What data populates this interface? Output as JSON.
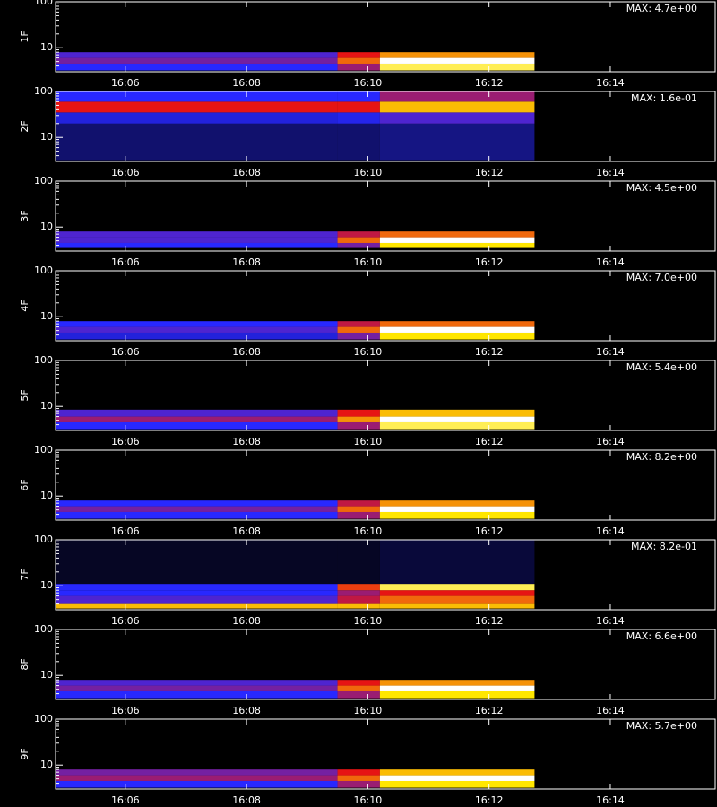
{
  "chart_data": [
    {
      "type": "heatmap",
      "ylabel": "1F",
      "annotation": "MAX: 4.7e+00",
      "log_y": true,
      "xlim": [
        964.85,
        975.73
      ],
      "ylim": [
        3,
        100
      ],
      "xticks": [
        {
          "value": 966,
          "label": "16:06"
        },
        {
          "value": 968,
          "label": "16:08"
        },
        {
          "value": 970,
          "label": "16:10"
        },
        {
          "value": 972,
          "label": "16:12"
        },
        {
          "value": 974,
          "label": "16:14"
        }
      ],
      "yticks": [
        10,
        100
      ],
      "xbins": [
        964.85,
        969.5,
        970.2,
        972.75
      ],
      "ybins": [
        3.2,
        4.5,
        6,
        8
      ],
      "values": [
        [
          0.35,
          0.5,
          0.9
        ],
        [
          0.45,
          0.7,
          1.0
        ],
        [
          0.4,
          0.6,
          0.75
        ]
      ]
    },
    {
      "type": "heatmap",
      "ylabel": "2F",
      "annotation": "MAX: 1.6e-01",
      "log_y": true,
      "xlim": [
        964.85,
        975.73
      ],
      "ylim": [
        3,
        100
      ],
      "xticks": [
        {
          "value": 966,
          "label": "16:06"
        },
        {
          "value": 968,
          "label": "16:08"
        },
        {
          "value": 970,
          "label": "16:10"
        },
        {
          "value": 972,
          "label": "16:12"
        },
        {
          "value": 974,
          "label": "16:14"
        }
      ],
      "yticks": [
        10,
        100
      ],
      "xbins": [
        964.85,
        969.5,
        970.2,
        972.75
      ],
      "ybins": [
        3.2,
        20,
        35,
        60,
        100
      ],
      "values": [
        [
          0.15,
          0.15,
          0.18
        ],
        [
          0.3,
          0.32,
          0.4
        ],
        [
          0.6,
          0.6,
          0.8
        ],
        [
          0.35,
          0.35,
          0.5
        ]
      ]
    },
    {
      "type": "heatmap",
      "ylabel": "3F",
      "annotation": "MAX: 4.5e+00",
      "log_y": true,
      "xlim": [
        964.85,
        975.73
      ],
      "ylim": [
        3,
        100
      ],
      "xticks": [
        {
          "value": 966,
          "label": "16:06"
        },
        {
          "value": 968,
          "label": "16:08"
        },
        {
          "value": 970,
          "label": "16:10"
        },
        {
          "value": 972,
          "label": "16:12"
        },
        {
          "value": 974,
          "label": "16:14"
        }
      ],
      "yticks": [
        10,
        100
      ],
      "xbins": [
        964.85,
        969.5,
        970.2,
        972.75
      ],
      "ybins": [
        3.5,
        4.5,
        6,
        8
      ],
      "values": [
        [
          0.35,
          0.45,
          0.85
        ],
        [
          0.4,
          0.7,
          1.0
        ],
        [
          0.4,
          0.55,
          0.7
        ]
      ]
    },
    {
      "type": "heatmap",
      "ylabel": "4F",
      "annotation": "MAX: 7.0e+00",
      "log_y": true,
      "xlim": [
        964.85,
        975.73
      ],
      "ylim": [
        3,
        100
      ],
      "xticks": [
        {
          "value": 966,
          "label": "16:06"
        },
        {
          "value": 968,
          "label": "16:08"
        },
        {
          "value": 970,
          "label": "16:10"
        },
        {
          "value": 972,
          "label": "16:12"
        },
        {
          "value": 974,
          "label": "16:14"
        }
      ],
      "yticks": [
        10,
        100
      ],
      "xbins": [
        964.85,
        969.5,
        970.2,
        972.75
      ],
      "ybins": [
        3.2,
        4.5,
        6,
        8
      ],
      "values": [
        [
          0.3,
          0.45,
          0.85
        ],
        [
          0.4,
          0.7,
          1.0
        ],
        [
          0.35,
          0.55,
          0.7
        ]
      ]
    },
    {
      "type": "heatmap",
      "ylabel": "5F",
      "annotation": "MAX: 5.4e+00",
      "log_y": true,
      "xlim": [
        964.85,
        975.73
      ],
      "ylim": [
        3,
        100
      ],
      "xticks": [
        {
          "value": 966,
          "label": "16:06"
        },
        {
          "value": 968,
          "label": "16:08"
        },
        {
          "value": 970,
          "label": "16:10"
        },
        {
          "value": 972,
          "label": "16:12"
        },
        {
          "value": 974,
          "label": "16:14"
        }
      ],
      "yticks": [
        10,
        100
      ],
      "xbins": [
        964.85,
        969.5,
        970.2,
        972.75
      ],
      "ybins": [
        3.2,
        4.5,
        6,
        8.5
      ],
      "values": [
        [
          0.35,
          0.5,
          0.9
        ],
        [
          0.5,
          0.75,
          1.0
        ],
        [
          0.4,
          0.6,
          0.8
        ]
      ]
    },
    {
      "type": "heatmap",
      "ylabel": "6F",
      "annotation": "MAX: 8.2e+00",
      "log_y": true,
      "xlim": [
        964.85,
        975.73
      ],
      "ylim": [
        3,
        100
      ],
      "xticks": [
        {
          "value": 966,
          "label": "16:06"
        },
        {
          "value": 968,
          "label": "16:08"
        },
        {
          "value": 970,
          "label": "16:10"
        },
        {
          "value": 972,
          "label": "16:12"
        },
        {
          "value": 974,
          "label": "16:14"
        }
      ],
      "yticks": [
        10,
        100
      ],
      "xbins": [
        964.85,
        969.5,
        970.2,
        972.75
      ],
      "ybins": [
        3.2,
        4.5,
        6,
        8
      ],
      "values": [
        [
          0.35,
          0.5,
          0.85
        ],
        [
          0.45,
          0.7,
          1.0
        ],
        [
          0.35,
          0.55,
          0.75
        ]
      ]
    },
    {
      "type": "heatmap",
      "ylabel": "7F",
      "annotation": "MAX: 8.2e-01",
      "log_y": true,
      "xlim": [
        964.85,
        975.73
      ],
      "ylim": [
        3,
        100
      ],
      "xticks": [
        {
          "value": 966,
          "label": "16:06"
        },
        {
          "value": 968,
          "label": "16:08"
        },
        {
          "value": 970,
          "label": "16:10"
        },
        {
          "value": 972,
          "label": "16:12"
        },
        {
          "value": 974,
          "label": "16:14"
        }
      ],
      "yticks": [
        10,
        100
      ],
      "xbins": [
        964.85,
        969.5,
        970.2,
        972.75
      ],
      "ybins": [
        3.2,
        4,
        6,
        8,
        11,
        100
      ],
      "values": [
        [
          0.8,
          0.8,
          0.8
        ],
        [
          0.4,
          0.55,
          0.7
        ],
        [
          0.35,
          0.5,
          0.6
        ],
        [
          0.35,
          0.65,
          0.9
        ],
        [
          0.05,
          0.05,
          0.08
        ]
      ]
    },
    {
      "type": "heatmap",
      "ylabel": "8F",
      "annotation": "MAX: 6.6e+00",
      "log_y": true,
      "xlim": [
        964.85,
        975.73
      ],
      "ylim": [
        3,
        100
      ],
      "xticks": [
        {
          "value": 966,
          "label": "16:06"
        },
        {
          "value": 968,
          "label": "16:08"
        },
        {
          "value": 970,
          "label": "16:10"
        },
        {
          "value": 972,
          "label": "16:12"
        },
        {
          "value": 974,
          "label": "16:14"
        }
      ],
      "yticks": [
        10,
        100
      ],
      "xbins": [
        964.85,
        969.5,
        970.2,
        972.75
      ],
      "ybins": [
        3.2,
        4.5,
        6,
        8
      ],
      "values": [
        [
          0.35,
          0.5,
          0.85
        ],
        [
          0.45,
          0.7,
          1.0
        ],
        [
          0.4,
          0.6,
          0.75
        ]
      ]
    },
    {
      "type": "heatmap",
      "ylabel": "9F",
      "annotation": "MAX: 5.7e+00",
      "log_y": true,
      "xlim": [
        964.85,
        975.73
      ],
      "ylim": [
        3,
        100
      ],
      "xticks": [
        {
          "value": 966,
          "label": "16:06"
        },
        {
          "value": 968,
          "label": "16:08"
        },
        {
          "value": 970,
          "label": "16:10"
        },
        {
          "value": 972,
          "label": "16:12"
        },
        {
          "value": 974,
          "label": "16:14"
        }
      ],
      "yticks": [
        10,
        100
      ],
      "xbins": [
        964.85,
        969.5,
        970.2,
        972.75
      ],
      "ybins": [
        3.2,
        4.5,
        6,
        8
      ],
      "values": [
        [
          0.35,
          0.5,
          0.85
        ],
        [
          0.5,
          0.7,
          1.0
        ],
        [
          0.45,
          0.6,
          0.8
        ]
      ]
    }
  ]
}
